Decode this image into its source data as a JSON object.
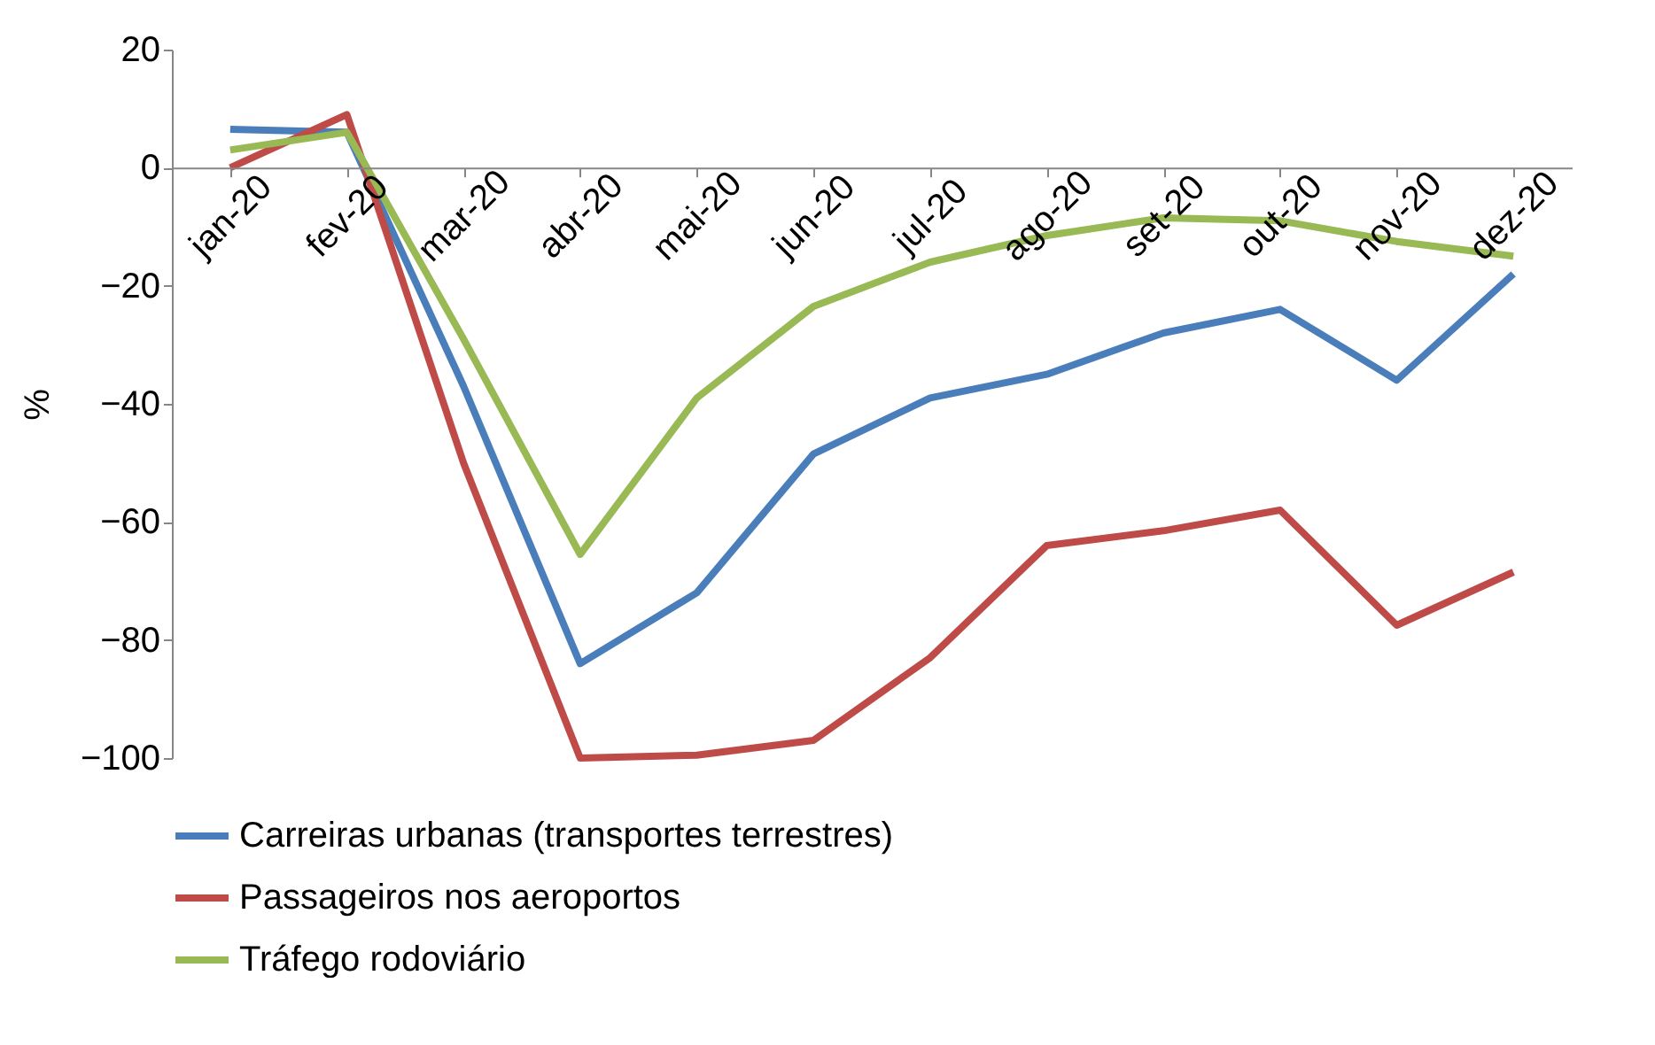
{
  "chart_data": {
    "type": "line",
    "ylabel": "%",
    "categories": [
      "jan-20",
      "fev-20",
      "mar-20",
      "abr-20",
      "mai-20",
      "jun-20",
      "jul-20",
      "ago-20",
      "set-20",
      "out-20",
      "nov-20",
      "dez-20"
    ],
    "series": [
      {
        "name": "Carreiras urbanas (transportes terrestres)",
        "color": "#4a7ebb",
        "values": [
          6.5,
          6,
          -37,
          -84,
          -72,
          -48.5,
          -39,
          -35,
          -28,
          -24,
          -36,
          -18
        ]
      },
      {
        "name": "Passageiros nos aeroportos",
        "color": "#be4b48",
        "values": [
          0,
          9,
          -50,
          -100,
          -99.5,
          -97,
          -83,
          -64,
          -61.5,
          -58,
          -77.5,
          -68.5
        ]
      },
      {
        "name": "Tráfego rodoviário",
        "color": "#98b954",
        "values": [
          3,
          6,
          -29,
          -65.5,
          -39,
          -23.5,
          -16,
          -11.5,
          -8.5,
          -9,
          -12.5,
          -15
        ]
      }
    ],
    "ylim": [
      -100,
      20
    ],
    "yticks": [
      -100,
      -80,
      -60,
      -40,
      -20,
      0,
      20
    ],
    "grid": false,
    "legend": "bottom"
  }
}
